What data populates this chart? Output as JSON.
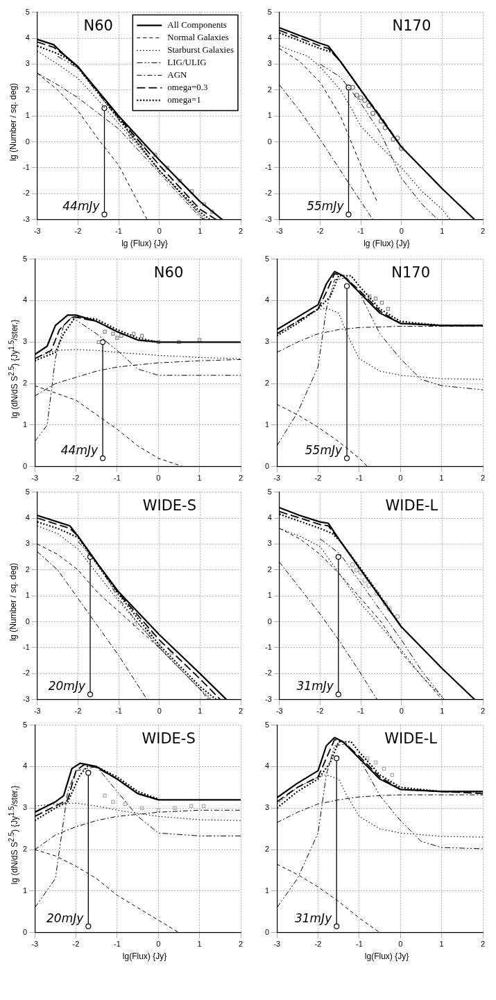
{
  "chart_data": [
    {
      "type": "line",
      "title": "N60",
      "xlabel": "lg (Flux)  {Jy}",
      "ylabel": "lg (Number / sq. deg)",
      "xlim": [
        -3,
        2
      ],
      "ylim": [
        -3,
        5
      ],
      "xticks": [
        -3,
        -2,
        -1,
        0,
        1,
        2
      ],
      "yticks": [
        -3,
        -2,
        -1,
        0,
        1,
        2,
        3,
        4,
        5
      ],
      "grid": true,
      "legend": "top right",
      "annotations": [
        {
          "text": "44mJy",
          "x": -1.35,
          "y": -2.8
        }
      ],
      "series": [
        {
          "name": "All Components",
          "color": "#000000",
          "line_style": "solid",
          "x": [
            -3,
            -2.6,
            -2.3,
            -2,
            -1,
            0,
            1,
            1.55
          ],
          "values": [
            3.95,
            3.75,
            3.3,
            2.9,
            1.0,
            -0.7,
            -2.3,
            -3
          ]
        },
        {
          "name": "Normal Galaxies",
          "color": "#000000",
          "line_style": "dashed",
          "x": [
            -3,
            -2.5,
            -2,
            -1.5,
            -1,
            -0.3
          ],
          "values": [
            2.65,
            2.0,
            1.2,
            0.1,
            -0.9,
            -3
          ]
        },
        {
          "name": "Starburst Galaxies",
          "color": "#000000",
          "line_style": "dotted",
          "x": [
            -3,
            -2.5,
            -2,
            -1.5,
            -1,
            0,
            1,
            1.15
          ],
          "values": [
            3.5,
            3.0,
            2.45,
            1.6,
            0.7,
            -1.1,
            -2.8,
            -3
          ]
        },
        {
          "name": "LIG/ULIG",
          "color": "#000000",
          "line_style": "dashed",
          "x": [
            -2.5,
            -2,
            -1,
            0,
            1,
            1.1
          ],
          "values": [
            3.3,
            2.85,
            0.85,
            -1.1,
            -2.8,
            -3
          ]
        },
        {
          "name": "AGN",
          "color": "#000000",
          "line_style": "dashed",
          "x": [
            -3,
            -2.5,
            -2,
            -1,
            0,
            1,
            1.1
          ],
          "values": [
            2.65,
            2.2,
            1.7,
            0.5,
            -1.2,
            -2.9,
            -3
          ]
        },
        {
          "name": "omega=0.3",
          "color": "#000000",
          "line_style": "dashed",
          "x": [
            -3,
            -2.6,
            -2.3,
            -2,
            -1,
            0,
            1,
            1.4
          ],
          "values": [
            3.85,
            3.65,
            3.3,
            2.9,
            0.95,
            -0.9,
            -2.6,
            -3
          ]
        },
        {
          "name": "omega=1",
          "color": "#000000",
          "line_style": "dotted",
          "x": [
            -3,
            -2.5,
            -2.3,
            -2,
            -1,
            0,
            1,
            1.25
          ],
          "values": [
            3.7,
            3.4,
            3.25,
            2.85,
            0.9,
            -1.1,
            -2.7,
            -3
          ]
        },
        {
          "type": "scatter",
          "marker": "square",
          "color": "#888888",
          "x": [
            -0.7,
            -0.4,
            -0.1,
            0.2,
            0.5,
            0.8,
            1.1,
            1.3
          ],
          "values": [
            0.2,
            -0.2,
            -0.5,
            -1.0,
            -1.5,
            -1.9,
            -2.4,
            -2.7
          ]
        },
        {
          "type": "line",
          "marker": "circle",
          "color": "#000000",
          "line_style": "solid",
          "x": [
            -1.35,
            -1.35
          ],
          "values": [
            -2.8,
            1.3
          ]
        }
      ]
    },
    {
      "type": "line",
      "title": "N170",
      "xlabel": "lg (Flux)  {Jy}",
      "xlim": [
        -3,
        2
      ],
      "ylim": [
        -3,
        5
      ],
      "xticks": [
        -3,
        -2,
        -1,
        0,
        1,
        2
      ],
      "yticks": [
        -3,
        -2,
        -1,
        0,
        1,
        2,
        3,
        4,
        5
      ],
      "grid": true,
      "annotations": [
        {
          "text": "55mJy",
          "x": -1.3,
          "y": -2.8
        }
      ],
      "series": [
        {
          "color": "#000000",
          "line_style": "solid",
          "x": [
            -3,
            -2.5,
            -2,
            -1.8,
            -1.5,
            -1,
            -0.5,
            0,
            1,
            1.8
          ],
          "values": [
            4.4,
            4.1,
            3.8,
            3.7,
            3.1,
            2.0,
            0.9,
            -0.2,
            -1.8,
            -3
          ]
        },
        {
          "color": "#000000",
          "line_style": "dashed",
          "x": [
            -3,
            -2.5,
            -2,
            -1.5,
            -1,
            -0.6
          ],
          "values": [
            3.6,
            3.1,
            2.3,
            1.0,
            -0.9,
            -2.3
          ]
        },
        {
          "color": "#000000",
          "line_style": "dotted",
          "x": [
            -3,
            -2.3,
            -2,
            -1.5,
            -1.2,
            -1,
            -0.5,
            0,
            0.5,
            1,
            1.2
          ],
          "values": [
            3.7,
            3.3,
            2.9,
            2.0,
            1.2,
            0.6,
            -0.2,
            -1.0,
            -1.9,
            -2.6,
            -3
          ]
        },
        {
          "color": "#000000",
          "line_style": "dashed",
          "x": [
            -2,
            -1.5,
            -1,
            -0.5,
            0,
            0.5,
            0.9
          ],
          "values": [
            3.0,
            2.5,
            1.5,
            0.3,
            -1.4,
            -2.4,
            -3
          ]
        },
        {
          "color": "#000000",
          "line_style": "dashed",
          "x": [
            -3,
            -2.5,
            -2,
            -1.5,
            -1,
            -0.7
          ],
          "values": [
            2.2,
            1.2,
            0.1,
            -1.1,
            -2.3,
            -3
          ]
        },
        {
          "color": "#000000",
          "line_style": "dashed",
          "x": [
            -3,
            -2,
            -1.8,
            -1.5,
            -1,
            -0.5,
            0
          ],
          "values": [
            4.3,
            3.7,
            3.6,
            3.1,
            2.0,
            0.95,
            -0.2
          ]
        },
        {
          "color": "#000000",
          "line_style": "dotted",
          "x": [
            -3,
            -2,
            -1.7,
            -1.5,
            -1,
            -0.5,
            0
          ],
          "values": [
            4.2,
            3.6,
            3.45,
            3.1,
            2.0,
            0.9,
            -0.2
          ]
        },
        {
          "type": "scatter",
          "marker": "circle",
          "color": "#777777",
          "x": [
            -1.2,
            -1.1,
            -1.0,
            -0.9,
            -0.8,
            -0.7,
            -0.5,
            -0.4,
            -0.2,
            -0.1,
            0
          ],
          "values": [
            2.1,
            1.8,
            1.7,
            1.6,
            1.4,
            1.1,
            0.8,
            0.55,
            0.1,
            0.15,
            -0.25
          ]
        },
        {
          "type": "line",
          "marker": "circle",
          "color": "#000000",
          "line_style": "solid",
          "x": [
            -1.3,
            -1.3
          ],
          "values": [
            -2.8,
            2.1
          ]
        }
      ]
    },
    {
      "type": "line",
      "title": "N60",
      "ylabel": "lg (dN/dS S$^{2.5}$)  {Jy$^{1.5}$/ster.}",
      "xlim": [
        -3,
        2
      ],
      "ylim": [
        0,
        5
      ],
      "xticks": [
        -3,
        -2,
        -1,
        0,
        1,
        2
      ],
      "yticks": [
        0,
        1,
        2,
        3,
        4,
        5
      ],
      "grid": true,
      "annotations": [
        {
          "text": "44mJy",
          "x": -1.35,
          "y": 0.2
        }
      ],
      "series": [
        {
          "color": "#000000",
          "line_style": "solid",
          "x": [
            -3,
            -2.7,
            -2.5,
            -2.2,
            -2,
            -1.5,
            -1,
            -0.5,
            0,
            1,
            2
          ],
          "values": [
            2.7,
            2.9,
            3.4,
            3.65,
            3.65,
            3.5,
            3.25,
            3.05,
            3.0,
            3.0,
            3.0
          ]
        },
        {
          "color": "#000000",
          "line_style": "dashed",
          "x": [
            -3,
            -2,
            -1.5,
            -1,
            -0.5,
            0,
            0.6
          ],
          "values": [
            1.95,
            1.6,
            1.25,
            0.9,
            0.5,
            0.2,
            0
          ]
        },
        {
          "color": "#000000",
          "line_style": "dotted",
          "x": [
            -3,
            -2.5,
            -2,
            -1.5,
            -1,
            0,
            1,
            2
          ],
          "values": [
            2.6,
            2.8,
            2.82,
            2.8,
            2.75,
            2.68,
            2.63,
            2.6
          ]
        },
        {
          "color": "#000000",
          "line_style": "dashed",
          "x": [
            -3,
            -2.7,
            -2.5,
            -2.3,
            -2.1,
            -1.5,
            -1,
            -0.5,
            0,
            1,
            2
          ],
          "values": [
            0.6,
            1.0,
            2.6,
            3.4,
            3.6,
            3.2,
            2.8,
            2.35,
            2.2,
            2.2,
            2.2
          ]
        },
        {
          "color": "#000000",
          "line_style": "dashed",
          "x": [
            -3,
            -2.5,
            -2,
            -1.5,
            -1,
            0,
            1,
            2
          ],
          "values": [
            1.7,
            2.0,
            2.15,
            2.3,
            2.4,
            2.5,
            2.55,
            2.58
          ]
        },
        {
          "color": "#000000",
          "line_style": "dashed",
          "x": [
            -3,
            -2.6,
            -2.4,
            -2.1,
            -2,
            -1.5,
            -1,
            -0.5,
            0
          ],
          "values": [
            2.6,
            2.8,
            3.3,
            3.6,
            3.6,
            3.5,
            3.25,
            3.05,
            3.0
          ]
        },
        {
          "color": "#000000",
          "line_style": "dotted",
          "x": [
            -3,
            -2.5,
            -2.3,
            -2.0,
            -1.5,
            -1,
            -0.5,
            0
          ],
          "values": [
            2.55,
            2.75,
            3.2,
            3.62,
            3.55,
            3.3,
            3.1,
            3.0
          ]
        },
        {
          "type": "scatter",
          "marker": "square",
          "color": "#888888",
          "x": [
            -1.45,
            -1.3,
            -1.1,
            -1.0,
            -0.9,
            -0.6,
            -0.4,
            0,
            0.5,
            1.0
          ],
          "values": [
            3.0,
            3.25,
            3.2,
            3.1,
            3.15,
            3.2,
            3.15,
            3.0,
            3.0,
            3.05
          ]
        },
        {
          "type": "line",
          "marker": "circle",
          "color": "#000000",
          "line_style": "solid",
          "x": [
            -1.35,
            -1.35
          ],
          "values": [
            0.2,
            3.0
          ]
        }
      ]
    },
    {
      "type": "line",
      "title": "N170",
      "xlim": [
        -3,
        2
      ],
      "ylim": [
        0,
        5
      ],
      "xticks": [
        -3,
        -2,
        -1,
        0,
        1,
        2
      ],
      "yticks": [
        0,
        1,
        2,
        3,
        4,
        5
      ],
      "grid": true,
      "annotations": [
        {
          "text": "55mJy",
          "x": -1.3,
          "y": 0.2
        }
      ],
      "series": [
        {
          "color": "#000000",
          "line_style": "solid",
          "x": [
            -3,
            -2.5,
            -2,
            -1.8,
            -1.6,
            -1.4,
            -1,
            -0.5,
            0,
            1,
            2
          ],
          "values": [
            3.3,
            3.6,
            3.9,
            4.4,
            4.7,
            4.6,
            4.2,
            3.7,
            3.45,
            3.4,
            3.4
          ]
        },
        {
          "color": "#000000",
          "line_style": "dashed",
          "x": [
            -3,
            -2.5,
            -2,
            -1.5,
            -1,
            -0.8
          ],
          "values": [
            1.5,
            1.25,
            0.95,
            0.6,
            0.2,
            0
          ]
        },
        {
          "color": "#000000",
          "line_style": "dotted",
          "x": [
            -3,
            -2.5,
            -2,
            -1.8,
            -1.5,
            -1.3,
            -1,
            -0.5,
            0,
            1,
            2
          ],
          "values": [
            3.2,
            3.5,
            3.78,
            3.82,
            3.7,
            3.2,
            2.6,
            2.3,
            2.2,
            2.12,
            2.1
          ]
        },
        {
          "color": "#000000",
          "line_style": "dashed",
          "x": [
            -3,
            -2.5,
            -2,
            -1.8,
            -1.6,
            -1.3,
            -1,
            -0.5,
            0,
            0.5,
            1,
            2
          ],
          "values": [
            0.5,
            1.3,
            2.4,
            3.8,
            4.5,
            4.55,
            4.2,
            3.2,
            2.6,
            2.1,
            1.95,
            1.85
          ]
        },
        {
          "color": "#000000",
          "line_style": "dashed",
          "x": [
            -3,
            -2.5,
            -2,
            -1.5,
            -1,
            0,
            1,
            2
          ],
          "values": [
            2.75,
            3.0,
            3.2,
            3.3,
            3.35,
            3.38,
            3.38,
            3.38
          ]
        },
        {
          "color": "#000000",
          "line_style": "dashed",
          "x": [
            -3,
            -2.5,
            -2,
            -1.8,
            -1.6,
            -1.4,
            -1,
            -0.5,
            0,
            1,
            2
          ],
          "values": [
            3.2,
            3.5,
            3.8,
            4.2,
            4.65,
            4.6,
            4.25,
            3.75,
            3.45,
            3.4,
            3.4
          ]
        },
        {
          "color": "#000000",
          "line_style": "dotted",
          "x": [
            -3,
            -2.5,
            -2,
            -1.7,
            -1.5,
            -1.2,
            -1,
            -0.5,
            0,
            1,
            2
          ],
          "values": [
            3.15,
            3.45,
            3.8,
            4.1,
            4.6,
            4.6,
            4.35,
            3.8,
            3.5,
            3.4,
            3.4
          ]
        },
        {
          "type": "scatter",
          "marker": "square",
          "color": "#888888",
          "x": [
            -0.75,
            -0.6,
            -0.45,
            -0.3
          ],
          "values": [
            4.1,
            4.05,
            3.95,
            3.8
          ]
        },
        {
          "type": "line",
          "marker": "circle",
          "color": "#000000",
          "line_style": "solid",
          "x": [
            -1.3,
            -1.3
          ],
          "values": [
            0.2,
            4.35
          ]
        }
      ]
    },
    {
      "type": "line",
      "title": "WIDE-S",
      "ylabel": "lg (Number / sq. deg)",
      "xlim": [
        -3,
        2
      ],
      "ylim": [
        -3,
        5
      ],
      "xticks": [
        -3,
        -2,
        -1,
        0,
        1,
        2
      ],
      "yticks": [
        -3,
        -2,
        -1,
        0,
        1,
        2,
        3,
        4,
        5
      ],
      "grid": true,
      "annotations": [
        {
          "text": "20mJy",
          "x": -1.7,
          "y": -2.8
        }
      ],
      "series": [
        {
          "color": "#000000",
          "line_style": "solid",
          "x": [
            -3,
            -2.5,
            -2.2,
            -2,
            -1.5,
            -1,
            0,
            1,
            1.65
          ],
          "values": [
            4.1,
            3.85,
            3.7,
            3.3,
            2.2,
            1.15,
            -0.5,
            -2.0,
            -3
          ]
        },
        {
          "color": "#000000",
          "line_style": "dashed",
          "x": [
            -3,
            -2.5,
            -2,
            -1.5,
            -1,
            -0.5,
            0,
            1,
            1.2
          ],
          "values": [
            3.0,
            2.6,
            2.0,
            1.1,
            0.4,
            -0.3,
            -1.0,
            -2.6,
            -3
          ]
        },
        {
          "color": "#000000",
          "line_style": "dotted",
          "x": [
            -3,
            -2.5,
            -2,
            -1.5,
            -1,
            0,
            1,
            1.3
          ],
          "values": [
            3.7,
            3.4,
            2.8,
            1.8,
            0.8,
            -1.0,
            -2.6,
            -3
          ]
        },
        {
          "color": "#000000",
          "line_style": "dashed",
          "x": [
            -2,
            -1.5,
            -1,
            -0.5,
            0,
            1,
            1.25
          ],
          "values": [
            3.1,
            2.2,
            0.9,
            -0.1,
            -1.0,
            -2.6,
            -3
          ]
        },
        {
          "color": "#000000",
          "line_style": "dashed",
          "x": [
            -3,
            -2.5,
            -2,
            -1.5,
            -1,
            -0.3
          ],
          "values": [
            2.7,
            2.0,
            0.9,
            -0.2,
            -1.3,
            -3
          ]
        },
        {
          "color": "#000000",
          "line_style": "dashed",
          "x": [
            -3,
            -2.5,
            -2.2,
            -2,
            -1,
            0,
            1,
            1.5
          ],
          "values": [
            4.0,
            3.75,
            3.6,
            3.3,
            1.1,
            -0.7,
            -2.2,
            -3
          ]
        },
        {
          "color": "#000000",
          "line_style": "dotted",
          "x": [
            -3,
            -2.5,
            -2,
            -1,
            0,
            1,
            1.4
          ],
          "values": [
            3.85,
            3.6,
            3.25,
            1.05,
            -0.9,
            -2.5,
            -3
          ]
        },
        {
          "type": "scatter",
          "marker": "square",
          "color": "#aaaaaa",
          "x": [
            -0.6,
            -0.3,
            -0.2,
            0,
            0.3
          ],
          "values": [
            -0.1,
            -0.3,
            -0.5,
            -0.9,
            -1.2
          ]
        },
        {
          "type": "line",
          "marker": "circle",
          "color": "#000000",
          "line_style": "solid",
          "x": [
            -1.7,
            -1.7
          ],
          "values": [
            -2.8,
            2.5
          ]
        }
      ]
    },
    {
      "type": "line",
      "title": "WIDE-L",
      "xlim": [
        -3,
        2
      ],
      "ylim": [
        -3,
        5
      ],
      "xticks": [
        -3,
        -2,
        -1,
        0,
        1,
        2
      ],
      "yticks": [
        -3,
        -2,
        -1,
        0,
        1,
        2,
        3,
        4,
        5
      ],
      "grid": true,
      "annotations": [
        {
          "text": "31mJy",
          "x": -1.55,
          "y": -2.8
        }
      ],
      "series": [
        {
          "color": "#000000",
          "line_style": "solid",
          "x": [
            -3,
            -2.5,
            -2,
            -1.8,
            -1.5,
            -1,
            -0.5,
            0,
            1,
            1.8
          ],
          "values": [
            4.4,
            4.1,
            3.85,
            3.8,
            3.1,
            2.0,
            0.9,
            -0.2,
            -1.8,
            -3
          ]
        },
        {
          "color": "#000000",
          "line_style": "dashed",
          "x": [
            -3,
            -2.5,
            -2,
            -1.5,
            -1,
            -0.5,
            0,
            1
          ],
          "values": [
            3.6,
            3.2,
            2.6,
            1.8,
            0.9,
            0,
            -1.2,
            -3
          ]
        },
        {
          "color": "#000000",
          "line_style": "dotted",
          "x": [
            -3,
            -2.5,
            -2,
            -1.5,
            -1,
            -0.5,
            0,
            0.5,
            1,
            1.05
          ],
          "values": [
            3.6,
            3.3,
            2.9,
            1.8,
            0.7,
            -0.2,
            -1.1,
            -2.1,
            -2.9,
            -3
          ]
        },
        {
          "color": "#000000",
          "line_style": "dashed",
          "x": [
            -2,
            -1.5,
            -1,
            -0.5,
            0,
            0.5,
            1,
            1.05
          ],
          "values": [
            3.2,
            2.6,
            1.5,
            0.4,
            -0.7,
            -1.9,
            -2.9,
            -3
          ]
        },
        {
          "color": "#000000",
          "line_style": "dashed",
          "x": [
            -3,
            -2.5,
            -2,
            -1.5,
            -1,
            -0.6
          ],
          "values": [
            2.3,
            1.3,
            0.3,
            -0.8,
            -2.0,
            -3
          ]
        },
        {
          "color": "#000000",
          "line_style": "dashed",
          "x": [
            -3,
            -2,
            -1.8,
            -1.5,
            -1,
            -0.5,
            0
          ],
          "values": [
            4.25,
            3.75,
            3.7,
            3.1,
            2.0,
            0.9,
            -0.2
          ]
        },
        {
          "color": "#000000",
          "line_style": "dotted",
          "x": [
            -3,
            -2,
            -1.7,
            -1.5,
            -1,
            -0.5,
            0
          ],
          "values": [
            4.15,
            3.6,
            3.4,
            3.1,
            2.05,
            0.95,
            -0.2
          ]
        },
        {
          "type": "scatter",
          "marker": "circle",
          "color": "#aaaaaa",
          "x": [
            -1.2,
            -1.1,
            -1.0,
            -0.9,
            -0.8,
            -0.6,
            -0.4,
            -0.3,
            -0.1
          ],
          "values": [
            2.2,
            2.0,
            1.9,
            1.6,
            1.4,
            1.1,
            0.7,
            0.5,
            0.2
          ]
        },
        {
          "type": "line",
          "marker": "circle",
          "color": "#000000",
          "line_style": "solid",
          "x": [
            -1.55,
            -1.55
          ],
          "values": [
            -2.8,
            2.5
          ]
        }
      ]
    },
    {
      "type": "line",
      "title": "WIDE-S",
      "xlabel": "lg(Flux) {Jy}",
      "ylabel": "lg (dN/dS S$^{2.5}$)  {Jy$^{1.5}$/ster.}",
      "xlim": [
        -3,
        2
      ],
      "ylim": [
        0,
        5
      ],
      "xticks": [
        -3,
        -2,
        -1,
        0,
        1,
        2
      ],
      "yticks": [
        0,
        1,
        2,
        3,
        4,
        5
      ],
      "grid": true,
      "annotations": [
        {
          "text": "20mJy",
          "x": -1.7,
          "y": 0.15
        }
      ],
      "series": [
        {
          "color": "#000000",
          "line_style": "solid",
          "x": [
            -3,
            -2.5,
            -2.3,
            -2.1,
            -1.9,
            -1.5,
            -1,
            -0.5,
            0,
            1,
            2
          ],
          "values": [
            2.9,
            3.15,
            3.3,
            3.95,
            4.08,
            4.0,
            3.7,
            3.35,
            3.2,
            3.2,
            3.2
          ]
        },
        {
          "color": "#000000",
          "line_style": "dashed",
          "x": [
            -3,
            -2.5,
            -2,
            -1.5,
            -1,
            -0.5,
            0,
            0.5
          ],
          "values": [
            2.0,
            1.85,
            1.6,
            1.3,
            0.9,
            0.6,
            0.3,
            0
          ]
        },
        {
          "color": "#000000",
          "line_style": "dotted",
          "x": [
            -3,
            -2.5,
            -2,
            -1.5,
            -1,
            0,
            1,
            2
          ],
          "values": [
            3.05,
            3.1,
            3.12,
            3.05,
            2.95,
            2.8,
            2.72,
            2.7
          ]
        },
        {
          "color": "#000000",
          "line_style": "dashed",
          "x": [
            -3,
            -2.5,
            -2.4,
            -2.2,
            -2,
            -1.5,
            -1,
            -0.5,
            0,
            1,
            2
          ],
          "values": [
            0.6,
            1.3,
            2.0,
            3.4,
            3.9,
            4.0,
            3.4,
            2.8,
            2.4,
            2.33,
            2.33
          ]
        },
        {
          "color": "#000000",
          "line_style": "dashed",
          "x": [
            -3,
            -2.5,
            -2,
            -1.5,
            -1,
            -0.5,
            0,
            1,
            2
          ],
          "values": [
            2.0,
            2.35,
            2.55,
            2.7,
            2.8,
            2.85,
            2.9,
            2.95,
            2.95
          ]
        },
        {
          "color": "#000000",
          "line_style": "dashed",
          "x": [
            -3,
            -2.5,
            -2.2,
            -2,
            -1.8,
            -1.5,
            -1,
            -0.5,
            0
          ],
          "values": [
            2.8,
            3.05,
            3.2,
            3.9,
            4.05,
            3.98,
            3.7,
            3.35,
            3.2
          ]
        },
        {
          "color": "#000000",
          "line_style": "dotted",
          "x": [
            -3,
            -2.5,
            -2.2,
            -1.9,
            -1.7,
            -1.5,
            -1,
            -0.5,
            0
          ],
          "values": [
            2.7,
            3.0,
            3.15,
            3.8,
            4.03,
            4.0,
            3.75,
            3.4,
            3.22
          ]
        },
        {
          "type": "scatter",
          "marker": "square",
          "color": "#aaaaaa",
          "x": [
            -1.3,
            -1.1,
            -0.8,
            -0.4,
            0,
            0.4,
            0.8,
            1.1
          ],
          "values": [
            3.3,
            3.15,
            3.1,
            3.0,
            2.95,
            3.0,
            3.05,
            3.05
          ]
        },
        {
          "type": "line",
          "marker": "circle",
          "color": "#000000",
          "line_style": "solid",
          "x": [
            -1.7,
            -1.7
          ],
          "values": [
            0.15,
            3.85
          ]
        }
      ]
    },
    {
      "type": "line",
      "title": "WIDE-L",
      "xlabel": "lg(Flux) {Jy}",
      "xlim": [
        -3,
        2
      ],
      "ylim": [
        0,
        5
      ],
      "xticks": [
        -3,
        -2,
        -1,
        0,
        1,
        2
      ],
      "yticks": [
        0,
        1,
        2,
        3,
        4,
        5
      ],
      "grid": true,
      "annotations": [
        {
          "text": "31mJy",
          "x": -1.55,
          "y": 0.15
        }
      ],
      "series": [
        {
          "color": "#000000",
          "line_style": "solid",
          "x": [
            -3,
            -2.5,
            -2,
            -1.8,
            -1.6,
            -1.4,
            -1,
            -0.5,
            0,
            1,
            2
          ],
          "values": [
            3.25,
            3.6,
            3.9,
            4.5,
            4.7,
            4.6,
            4.2,
            3.7,
            3.45,
            3.4,
            3.4
          ]
        },
        {
          "color": "#000000",
          "line_style": "dashed",
          "x": [
            -3,
            -2.5,
            -2,
            -1.5,
            -1,
            -0.5
          ],
          "values": [
            1.65,
            1.4,
            1.1,
            0.75,
            0.35,
            0
          ]
        },
        {
          "color": "#000000",
          "line_style": "dotted",
          "x": [
            -3,
            -2.5,
            -2,
            -1.8,
            -1.5,
            -1.3,
            -1,
            -0.5,
            0,
            1,
            2
          ],
          "values": [
            3.1,
            3.5,
            3.75,
            3.8,
            3.7,
            3.3,
            2.8,
            2.5,
            2.4,
            2.32,
            2.3
          ]
        },
        {
          "color": "#000000",
          "line_style": "dashed",
          "x": [
            -3,
            -2.5,
            -2,
            -1.8,
            -1.6,
            -1.3,
            -1,
            -0.5,
            0,
            0.5,
            1,
            2
          ],
          "values": [
            0.6,
            1.3,
            2.4,
            3.8,
            4.5,
            4.55,
            4.2,
            3.3,
            2.7,
            2.2,
            2.05,
            2.02
          ]
        },
        {
          "color": "#000000",
          "line_style": "dashed",
          "x": [
            -3,
            -2.5,
            -2,
            -1.5,
            -1,
            -0.5,
            0,
            1,
            2
          ],
          "values": [
            2.65,
            2.9,
            3.1,
            3.2,
            3.27,
            3.3,
            3.32,
            3.32,
            3.32
          ]
        },
        {
          "color": "#000000",
          "line_style": "dashed",
          "x": [
            -3,
            -2.5,
            -2,
            -1.8,
            -1.6,
            -1.4,
            -1,
            -0.5,
            0,
            1,
            2
          ],
          "values": [
            3.15,
            3.5,
            3.75,
            4.2,
            4.65,
            4.6,
            4.25,
            3.75,
            3.45,
            3.4,
            3.35
          ]
        },
        {
          "color": "#000000",
          "line_style": "dotted",
          "x": [
            -3,
            -2.5,
            -2,
            -1.7,
            -1.5,
            -1.2,
            -1,
            -0.5,
            0,
            1,
            2
          ],
          "values": [
            3.0,
            3.4,
            3.7,
            4.1,
            4.6,
            4.6,
            4.35,
            3.8,
            3.5,
            3.4,
            3.4
          ]
        },
        {
          "type": "scatter",
          "marker": "square",
          "color": "#aaaaaa",
          "x": [
            -0.8,
            -0.6,
            -0.4,
            -0.2
          ],
          "values": [
            4.2,
            4.1,
            3.95,
            3.8
          ]
        },
        {
          "type": "line",
          "marker": "circle",
          "color": "#000000",
          "line_style": "solid",
          "x": [
            -1.55,
            -1.55
          ],
          "values": [
            0.15,
            4.2
          ]
        }
      ]
    }
  ]
}
